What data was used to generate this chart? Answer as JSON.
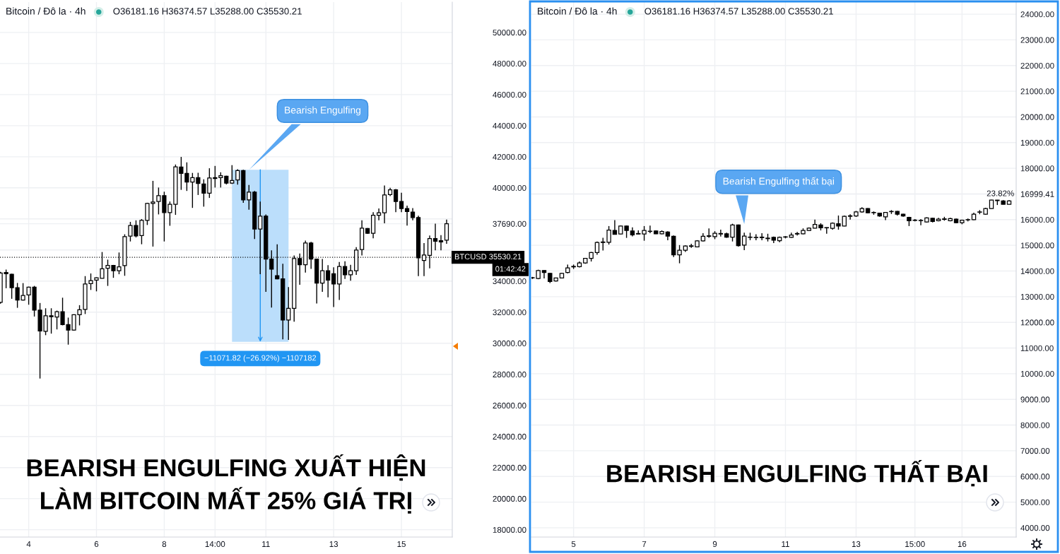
{
  "chart_data": [
    {
      "type": "candlestick",
      "title": "Bitcoin / Đô la · 4h",
      "subtitle": "O36181.16 H36374.57 L35288.00 C35530.21",
      "categories": [
        null,
        null,
        null,
        null,
        null,
        "4",
        null,
        null,
        null,
        null,
        null,
        null,
        null,
        null,
        null,
        null,
        null,
        "6",
        null,
        null,
        null,
        null,
        null,
        null,
        null,
        null,
        null,
        null,
        null,
        "8",
        null,
        null,
        null,
        null,
        null,
        null,
        null,
        null,
        "14:00",
        null,
        null,
        null,
        null,
        null,
        null,
        null,
        null,
        "11",
        null,
        null,
        null,
        null,
        null,
        null,
        null,
        null,
        null,
        null,
        null,
        "13",
        null,
        null,
        null,
        null,
        null,
        null,
        null,
        null,
        null,
        null,
        null,
        "15",
        null,
        null,
        null,
        null,
        null,
        null,
        null,
        null
      ],
      "ohlc": [
        [
          32630,
          34590,
          32550,
          34520
        ],
        [
          34550,
          34740,
          33540,
          34470
        ],
        [
          34440,
          34470,
          32860,
          33580
        ],
        [
          33570,
          33880,
          32280,
          32780
        ],
        [
          32780,
          33870,
          32750,
          33080
        ],
        [
          33110,
          33640,
          32480,
          33610
        ],
        [
          33610,
          33690,
          31720,
          32130
        ],
        [
          32130,
          32590,
          27730,
          30790
        ],
        [
          30770,
          32250,
          30520,
          31770
        ],
        [
          31770,
          32250,
          30620,
          31710
        ],
        [
          31690,
          32100,
          30890,
          32030
        ],
        [
          32030,
          32930,
          31150,
          31200
        ],
        [
          31200,
          31650,
          29910,
          30850
        ],
        [
          30850,
          31860,
          30820,
          31830
        ],
        [
          31830,
          32450,
          31150,
          32150
        ],
        [
          32180,
          34320,
          31880,
          33810
        ],
        [
          33840,
          34490,
          33430,
          34030
        ],
        [
          34060,
          34240,
          33340,
          34210
        ],
        [
          34180,
          35870,
          34170,
          34790
        ],
        [
          34820,
          35380,
          33690,
          35010
        ],
        [
          35010,
          35040,
          34210,
          34670
        ],
        [
          34670,
          35840,
          34440,
          34920
        ],
        [
          35000,
          37010,
          34340,
          36860
        ],
        [
          36890,
          37810,
          36550,
          37580
        ],
        [
          37580,
          37910,
          36810,
          36900
        ],
        [
          36930,
          37990,
          36370,
          37910
        ],
        [
          37910,
          39040,
          37610,
          39000
        ],
        [
          39000,
          40450,
          36220,
          39090
        ],
        [
          39120,
          40020,
          38290,
          39500
        ],
        [
          39500,
          39750,
          36550,
          38410
        ],
        [
          38410,
          39120,
          37560,
          38940
        ],
        [
          38940,
          41500,
          38260,
          41350
        ],
        [
          41340,
          41990,
          39870,
          40930
        ],
        [
          40930,
          41640,
          39800,
          40370
        ],
        [
          40370,
          40960,
          38710,
          40660
        ],
        [
          40660,
          40970,
          39540,
          40280
        ],
        [
          40250,
          40550,
          38790,
          39660
        ],
        [
          39660,
          41260,
          39350,
          40630
        ],
        [
          40660,
          41410,
          40020,
          40600
        ],
        [
          40660,
          41000,
          40020,
          40780
        ],
        [
          40750,
          40780,
          40220,
          40300
        ],
        [
          40300,
          41460,
          40250,
          40480
        ],
        [
          40510,
          41200,
          40210,
          41110
        ],
        [
          41110,
          41160,
          39040,
          39230
        ],
        [
          39230,
          40180,
          38590,
          39720
        ],
        [
          39720,
          39800,
          36710,
          37350
        ],
        [
          37350,
          39120,
          34440,
          38180
        ],
        [
          38180,
          38290,
          33310,
          35420
        ],
        [
          35420,
          35980,
          32300,
          34770
        ],
        [
          34350,
          36360,
          34110,
          34140
        ],
        [
          34140,
          35120,
          30250,
          31500
        ],
        [
          31500,
          33610,
          30220,
          32250
        ],
        [
          32250,
          35650,
          31390,
          35450
        ],
        [
          35450,
          35770,
          33760,
          35050
        ],
        [
          35050,
          36600,
          34550,
          36450
        ],
        [
          36450,
          36520,
          34790,
          35420
        ],
        [
          35420,
          35450,
          32560,
          33870
        ],
        [
          33870,
          35420,
          33310,
          34670
        ],
        [
          34670,
          35020,
          32960,
          34060
        ],
        [
          34470,
          34890,
          32330,
          33810
        ],
        [
          33810,
          35230,
          32780,
          34940
        ],
        [
          34940,
          35270,
          34140,
          34400
        ],
        [
          34410,
          35050,
          34020,
          34670
        ],
        [
          34670,
          36180,
          34400,
          36000
        ],
        [
          36030,
          37910,
          35650,
          37410
        ],
        [
          37380,
          37410,
          37040,
          37080
        ],
        [
          37080,
          38440,
          36750,
          38240
        ],
        [
          38240,
          38670,
          37910,
          38400
        ],
        [
          38400,
          40150,
          37720,
          39540
        ],
        [
          39570,
          40000,
          39470,
          39870
        ],
        [
          39870,
          39920,
          38440,
          39120
        ],
        [
          39120,
          39690,
          38440,
          38670
        ],
        [
          38670,
          38850,
          37570,
          38470
        ],
        [
          38440,
          38700,
          37910,
          38090
        ],
        [
          38090,
          38210,
          34320,
          35500
        ],
        [
          35320,
          36450,
          34320,
          35680
        ],
        [
          35650,
          36930,
          34820,
          36740
        ],
        [
          36740,
          37690,
          35980,
          36560
        ],
        [
          36600,
          36960,
          35980,
          36520
        ],
        [
          36630,
          37960,
          36400,
          37690
        ]
      ],
      "ylim": [
        17530,
        51950
      ],
      "yticks": [
        {
          "value": 18000,
          "label": "18000.00"
        },
        {
          "value": 20000,
          "label": "20000.00"
        },
        {
          "value": 22000,
          "label": "22000.00"
        },
        {
          "value": 24000,
          "label": "24000.00"
        },
        {
          "value": 26000,
          "label": "26000.00"
        },
        {
          "value": 28000,
          "label": "28000.00"
        },
        {
          "value": 30000,
          "label": "30000.00"
        },
        {
          "value": 32000,
          "label": "32000.00"
        },
        {
          "value": 34000,
          "label": "34000.00"
        },
        {
          "value": 36000,
          "label": null
        },
        {
          "value": 37690,
          "label": "37690.00"
        },
        {
          "value": 38000,
          "label": null
        },
        {
          "value": 40000,
          "label": "40000.00"
        },
        {
          "value": 42000,
          "label": "42000.00"
        },
        {
          "value": 44000,
          "label": "44000.00"
        },
        {
          "value": 46000,
          "label": "46000.00"
        },
        {
          "value": 48000,
          "label": "48000.00"
        },
        {
          "value": 50000,
          "label": "50000.00"
        }
      ],
      "grid": true,
      "bands": [
        {
          "axis": "y",
          "from": 41161,
          "to": 30089,
          "label": "−11071.82 (−26.92%) −1107182",
          "color": "#bbdefb"
        }
      ],
      "ref_lines": [
        {
          "axis": "y",
          "value": 35530.21,
          "label": "BTCUSD 35530.21\n01:42:42",
          "line_style": "dotted",
          "color": "#000000"
        }
      ],
      "annotations": [
        "Bearish Engulfing",
        "BEARISH ENGULFING XUẤT HIỆN\nLÀM BITCOIN MẤT 25% GIÁ TRỊ"
      ]
    },
    {
      "type": "candlestick",
      "title": "Bitcoin / Đô la · 4h",
      "subtitle": "O36181.16 H36374.57 L35288.00 C35530.21",
      "categories": [
        null,
        null,
        null,
        null,
        null,
        null,
        null,
        "5",
        null,
        null,
        null,
        null,
        null,
        null,
        null,
        null,
        null,
        null,
        null,
        "7",
        null,
        null,
        null,
        null,
        null,
        null,
        null,
        null,
        null,
        null,
        null,
        "9",
        null,
        null,
        null,
        null,
        null,
        null,
        null,
        null,
        null,
        null,
        null,
        "11",
        null,
        null,
        null,
        null,
        null,
        null,
        null,
        null,
        null,
        null,
        null,
        "13",
        null,
        null,
        null,
        null,
        null,
        null,
        null,
        null,
        null,
        "15:00",
        null,
        null,
        null,
        null,
        null,
        null,
        null,
        "16",
        null,
        null,
        null,
        null,
        null,
        null,
        null,
        null
      ],
      "ohlc": [
        [
          13740,
          13770,
          13690,
          13730
        ],
        [
          13710,
          14050,
          13680,
          14020
        ],
        [
          14020,
          14030,
          13710,
          13940
        ],
        [
          13910,
          13920,
          13530,
          13590
        ],
        [
          13610,
          13740,
          13590,
          13730
        ],
        [
          13730,
          13930,
          13710,
          13910
        ],
        [
          13940,
          14250,
          13910,
          14120
        ],
        [
          14160,
          14250,
          14080,
          14180
        ],
        [
          14170,
          14370,
          14140,
          14310
        ],
        [
          14310,
          14510,
          14280,
          14490
        ],
        [
          14490,
          14740,
          14370,
          14720
        ],
        [
          14720,
          15150,
          14630,
          15110
        ],
        [
          15110,
          15290,
          14800,
          15130
        ],
        [
          15120,
          15750,
          15030,
          15590
        ],
        [
          15580,
          15980,
          15420,
          15430
        ],
        [
          15440,
          15770,
          15430,
          15750
        ],
        [
          15750,
          15770,
          15290,
          15580
        ],
        [
          15560,
          15700,
          15350,
          15410
        ],
        [
          15460,
          15580,
          15430,
          15440
        ],
        [
          15440,
          15750,
          15180,
          15580
        ],
        [
          15540,
          15770,
          15470,
          15550
        ],
        [
          15560,
          15580,
          15440,
          15450
        ],
        [
          15450,
          15580,
          15430,
          15540
        ],
        [
          15520,
          15550,
          15200,
          15360
        ],
        [
          15350,
          15380,
          14540,
          14630
        ],
        [
          14630,
          15010,
          14300,
          14810
        ],
        [
          14810,
          15000,
          14740,
          14970
        ],
        [
          14960,
          15060,
          14900,
          14980
        ],
        [
          14940,
          15200,
          14920,
          15170
        ],
        [
          15170,
          15470,
          15150,
          15350
        ],
        [
          15350,
          15660,
          15290,
          15370
        ],
        [
          15340,
          15550,
          15240,
          15470
        ],
        [
          15440,
          15610,
          15340,
          15460
        ],
        [
          15450,
          15490,
          15290,
          15320
        ],
        [
          15320,
          15840,
          15150,
          15790
        ],
        [
          15790,
          15810,
          14950,
          14990
        ],
        [
          15010,
          15490,
          14810,
          15360
        ],
        [
          15310,
          15490,
          15200,
          15320
        ],
        [
          15300,
          15430,
          15200,
          15310
        ],
        [
          15320,
          15470,
          15200,
          15300
        ],
        [
          15260,
          15450,
          15150,
          15280
        ],
        [
          15310,
          15340,
          15090,
          15200
        ],
        [
          15180,
          15340,
          15120,
          15310
        ],
        [
          15320,
          15360,
          15270,
          15330
        ],
        [
          15310,
          15490,
          15290,
          15400
        ],
        [
          15440,
          15520,
          15380,
          15460
        ],
        [
          15450,
          15660,
          15430,
          15580
        ],
        [
          15580,
          15700,
          15560,
          15670
        ],
        [
          15670,
          16000,
          15660,
          15810
        ],
        [
          15790,
          15860,
          15580,
          15680
        ],
        [
          15690,
          15700,
          15450,
          15680
        ],
        [
          15660,
          15890,
          15610,
          15860
        ],
        [
          15840,
          16160,
          15610,
          15750
        ],
        [
          15750,
          16160,
          15740,
          16130
        ],
        [
          16130,
          16210,
          16000,
          16150
        ],
        [
          16140,
          16340,
          16110,
          16300
        ],
        [
          16300,
          16480,
          16270,
          16430
        ],
        [
          16430,
          16450,
          16250,
          16270
        ],
        [
          16270,
          16320,
          16190,
          16280
        ],
        [
          16250,
          16270,
          16110,
          16140
        ],
        [
          16110,
          16300,
          15980,
          16280
        ],
        [
          16310,
          16370,
          16220,
          16320
        ],
        [
          16320,
          16340,
          16160,
          16210
        ],
        [
          16210,
          16230,
          16110,
          16140
        ],
        [
          16090,
          16110,
          15750,
          15960
        ],
        [
          15970,
          16020,
          15930,
          15980
        ],
        [
          15960,
          16020,
          15780,
          15970
        ],
        [
          15910,
          16090,
          15890,
          16070
        ],
        [
          16050,
          16070,
          15890,
          15930
        ],
        [
          15960,
          16070,
          15930,
          16020
        ],
        [
          16010,
          16110,
          15960,
          16030
        ],
        [
          15960,
          16070,
          15930,
          16040
        ],
        [
          16020,
          16040,
          15860,
          15880
        ],
        [
          15880,
          16000,
          15820,
          15980
        ],
        [
          15990,
          16040,
          15930,
          16000
        ],
        [
          16000,
          16270,
          15980,
          16210
        ],
        [
          16290,
          16370,
          16210,
          16300
        ],
        [
          16210,
          16460,
          16190,
          16430
        ],
        [
          16430,
          16770,
          16420,
          16760
        ],
        [
          16760,
          16770,
          16570,
          16740
        ],
        [
          16730,
          16760,
          16590,
          16600
        ],
        [
          16600,
          16760,
          16590,
          16730
        ]
      ],
      "ylim": [
        3640,
        24470
      ],
      "yticks": [
        {
          "value": 4000,
          "label": "4000.00"
        },
        {
          "value": 5000,
          "label": "5000.00"
        },
        {
          "value": 6000,
          "label": "6000.00"
        },
        {
          "value": 7000,
          "label": "7000.00"
        },
        {
          "value": 8000,
          "label": "8000.00"
        },
        {
          "value": 9000,
          "label": "9000.00"
        },
        {
          "value": 10000,
          "label": "10000.00"
        },
        {
          "value": 11000,
          "label": "11000.00"
        },
        {
          "value": 12000,
          "label": "12000.00"
        },
        {
          "value": 13000,
          "label": "13000.00"
        },
        {
          "value": 14000,
          "label": "14000.00"
        },
        {
          "value": 15000,
          "label": "15000.00"
        },
        {
          "value": 16000,
          "label": "16000.00"
        },
        {
          "value": 16999.41,
          "label": "16999.41"
        },
        {
          "value": 17000,
          "label": null
        },
        {
          "value": 18000,
          "label": "18000.00"
        },
        {
          "value": 19000,
          "label": "19000.00"
        },
        {
          "value": 20000,
          "label": "20000.00"
        },
        {
          "value": 21000,
          "label": "21000.00"
        },
        {
          "value": 22000,
          "label": "22000.00"
        },
        {
          "value": 23000,
          "label": "23000.00"
        },
        {
          "value": 24000,
          "label": "24000.00"
        }
      ],
      "grid": true,
      "annotations": [
        "Bearish Engulfing thất bại",
        "BEARISH ENGULFING THẤT BẠI",
        "23.82%"
      ]
    }
  ]
}
